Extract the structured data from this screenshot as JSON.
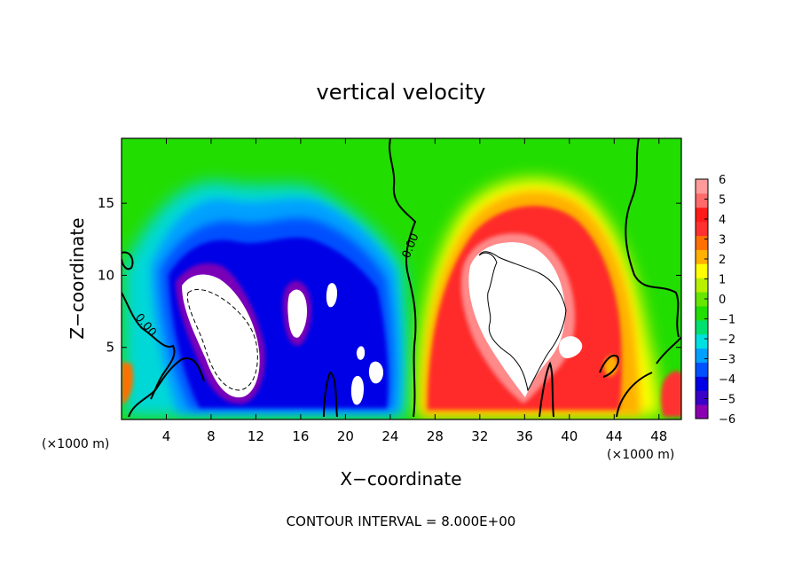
{
  "chart_data": {
    "type": "heatmap",
    "title": "vertical velocity",
    "xlabel": "X−coordinate",
    "ylabel": "Z−coordinate",
    "x_unit_left": "(×1000 m)",
    "x_unit_right": "(×1000 m)",
    "footer": "CONTOUR INTERVAL = 8.000E+00",
    "xlim": [
      0,
      50
    ],
    "ylim": [
      0,
      19.5
    ],
    "x_ticks": [
      4,
      8,
      12,
      16,
      20,
      24,
      28,
      32,
      36,
      40,
      44,
      48
    ],
    "x_tick_labels": [
      "4",
      "8",
      "12",
      "16",
      "20",
      "24",
      "28",
      "32",
      "36",
      "40",
      "44",
      "48"
    ],
    "y_ticks": [
      5,
      10,
      15
    ],
    "y_tick_labels": [
      "5",
      "10",
      "15"
    ],
    "colorbar": {
      "range": [
        -6,
        6
      ],
      "tick_values": [
        6,
        5,
        4,
        3,
        2,
        1,
        0,
        -1,
        -2,
        -3,
        -4,
        -5,
        -6
      ],
      "tick_labels": [
        "6",
        "5",
        "4",
        "3",
        "2",
        "1",
        "0",
        "−1",
        "−2",
        "−3",
        "−4",
        "−5",
        "−6"
      ],
      "colors": [
        "#8a00b0",
        "#3a00c8",
        "#0000e6",
        "#0050ff",
        "#00a0ff",
        "#00e0e0",
        "#00e070",
        "#22dd00",
        "#66e600",
        "#b8f000",
        "#ffff00",
        "#ffb000",
        "#ff7000",
        "#ff3030",
        "#ff1a1a",
        "#ff6a6a",
        "#ff9a9a"
      ]
    },
    "contour_labels": [
      "0.00",
      "0.00"
    ],
    "features": [
      {
        "name": "downdraft-1",
        "sign": "negative",
        "x": 9.5,
        "z": 7.0
      },
      {
        "name": "downdraft-2",
        "sign": "negative",
        "x": 17.0,
        "z": 8.0
      },
      {
        "name": "downdraft-3",
        "sign": "negative",
        "x": 21.5,
        "z": 6.0
      },
      {
        "name": "updraft",
        "sign": "positive",
        "x": 34.5,
        "z": 8.5
      }
    ]
  }
}
